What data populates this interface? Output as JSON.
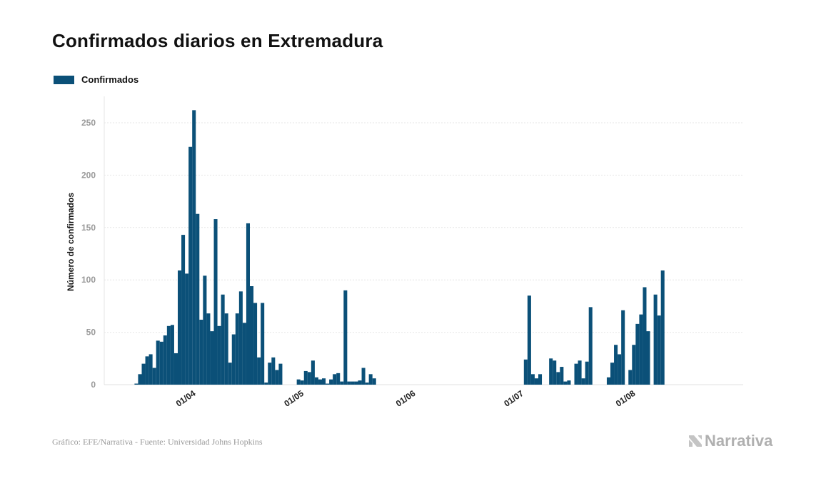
{
  "header": {
    "title": "Confirmados diarios en Extremadura"
  },
  "legend": {
    "label": "Confirmados",
    "color": "#0b5078"
  },
  "footer": {
    "source": "Gráfico: EFE/Narrativa - Fuente: Universidad Johns Hopkins",
    "brand": "Narrativa"
  },
  "colors": {
    "bar": "#0b5078",
    "grid": "#e6e6e6",
    "tick_label": "#9a9a9a",
    "brand": "#b0b0b0"
  },
  "chart_data": {
    "type": "bar",
    "title": "Confirmados diarios en Extremadura",
    "xlabel": "",
    "ylabel": "Número de confirmados",
    "ylim": [
      0,
      275
    ],
    "yticks": [
      0,
      50,
      100,
      150,
      200,
      250
    ],
    "grid": true,
    "legend_placement": "top-left",
    "xtick_labels": [
      {
        "date": "2020-04-01",
        "label": "01/04"
      },
      {
        "date": "2020-05-01",
        "label": "01/05"
      },
      {
        "date": "2020-06-01",
        "label": "01/06"
      },
      {
        "date": "2020-07-01",
        "label": "01/07"
      },
      {
        "date": "2020-08-01",
        "label": "01/08"
      }
    ],
    "x_start": "2020-03-09",
    "x_end": "2020-08-31",
    "series": [
      {
        "name": "Confirmados",
        "x": [
          "2020-03-17",
          "2020-03-18",
          "2020-03-19",
          "2020-03-20",
          "2020-03-21",
          "2020-03-22",
          "2020-03-23",
          "2020-03-24",
          "2020-03-25",
          "2020-03-26",
          "2020-03-27",
          "2020-03-28",
          "2020-03-29",
          "2020-03-30",
          "2020-03-31",
          "2020-04-01",
          "2020-04-02",
          "2020-04-03",
          "2020-04-04",
          "2020-04-05",
          "2020-04-06",
          "2020-04-07",
          "2020-04-08",
          "2020-04-09",
          "2020-04-10",
          "2020-04-11",
          "2020-04-12",
          "2020-04-13",
          "2020-04-14",
          "2020-04-15",
          "2020-04-16",
          "2020-04-17",
          "2020-04-18",
          "2020-04-19",
          "2020-04-20",
          "2020-04-21",
          "2020-04-22",
          "2020-04-23",
          "2020-04-24",
          "2020-04-25",
          "2020-04-26",
          "2020-05-01",
          "2020-05-02",
          "2020-05-03",
          "2020-05-04",
          "2020-05-05",
          "2020-05-06",
          "2020-05-07",
          "2020-05-08",
          "2020-05-09",
          "2020-05-10",
          "2020-05-11",
          "2020-05-12",
          "2020-05-13",
          "2020-05-14",
          "2020-05-15",
          "2020-05-16",
          "2020-05-17",
          "2020-05-18",
          "2020-05-19",
          "2020-05-20",
          "2020-05-21",
          "2020-05-22",
          "2020-07-03",
          "2020-07-04",
          "2020-07-05",
          "2020-07-06",
          "2020-07-07",
          "2020-07-10",
          "2020-07-11",
          "2020-07-12",
          "2020-07-13",
          "2020-07-14",
          "2020-07-15",
          "2020-07-17",
          "2020-07-18",
          "2020-07-19",
          "2020-07-20",
          "2020-07-21",
          "2020-07-26",
          "2020-07-27",
          "2020-07-28",
          "2020-07-29",
          "2020-07-30",
          "2020-08-01",
          "2020-08-02",
          "2020-08-03",
          "2020-08-04",
          "2020-08-05",
          "2020-08-06",
          "2020-08-08",
          "2020-08-09",
          "2020-08-10",
          "2020-08-11",
          "2020-08-15",
          "2020-08-16",
          "2020-08-17",
          "2020-08-18"
        ],
        "values": [
          1,
          10,
          20,
          27,
          29,
          16,
          42,
          41,
          47,
          56,
          57,
          30,
          109,
          143,
          106,
          227,
          262,
          163,
          62,
          104,
          68,
          51,
          158,
          56,
          86,
          68,
          21,
          48,
          68,
          89,
          59,
          154,
          94,
          78,
          26,
          78,
          2,
          21,
          26,
          14,
          20,
          5,
          4,
          13,
          12,
          23,
          7,
          5,
          6,
          1,
          5,
          10,
          11,
          3,
          90,
          3,
          3,
          3,
          4,
          16,
          2,
          10,
          6,
          24,
          85,
          10,
          6,
          10,
          25,
          23,
          12,
          17,
          3,
          4,
          20,
          23,
          6,
          22,
          74,
          7,
          21,
          38,
          29,
          71,
          14,
          38,
          58,
          67,
          93,
          51,
          86,
          66,
          109,
          0,
          0,
          0,
          0,
          0
        ]
      }
    ]
  }
}
